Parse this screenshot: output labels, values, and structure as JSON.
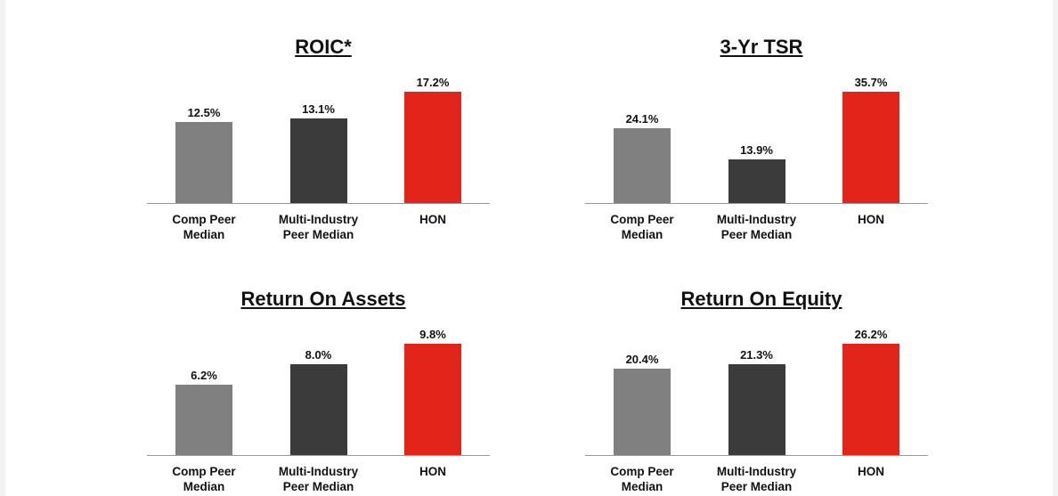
{
  "chart_data": [
    {
      "type": "bar",
      "title": "ROIC*",
      "categories": [
        "Comp Peer Median",
        "Multi-Industry Peer Median",
        "HON"
      ],
      "values": [
        12.5,
        13.1,
        17.2
      ],
      "value_labels": [
        "12.5%",
        "13.1%",
        "17.2%"
      ],
      "colors": [
        "#808080",
        "#3b3b3b",
        "#e3241b"
      ]
    },
    {
      "type": "bar",
      "title": "3-Yr TSR",
      "categories": [
        "Comp Peer Median",
        "Multi-Industry Peer Median",
        "HON"
      ],
      "values": [
        24.1,
        13.9,
        35.7
      ],
      "value_labels": [
        "24.1%",
        "13.9%",
        "35.7%"
      ],
      "colors": [
        "#808080",
        "#3b3b3b",
        "#e3241b"
      ]
    },
    {
      "type": "bar",
      "title": "Return On Assets",
      "categories": [
        "Comp Peer Median",
        "Multi-Industry Peer Median",
        "HON"
      ],
      "values": [
        6.2,
        8.0,
        9.8
      ],
      "value_labels": [
        "6.2%",
        "8.0%",
        "9.8%"
      ],
      "colors": [
        "#808080",
        "#3b3b3b",
        "#e3241b"
      ]
    },
    {
      "type": "bar",
      "title": "Return On Equity",
      "categories": [
        "Comp Peer Median",
        "Multi-Industry Peer Median",
        "HON"
      ],
      "values": [
        20.4,
        21.3,
        26.2
      ],
      "value_labels": [
        "20.4%",
        "21.3%",
        "26.2%"
      ],
      "colors": [
        "#808080",
        "#3b3b3b",
        "#e3241b"
      ]
    }
  ]
}
